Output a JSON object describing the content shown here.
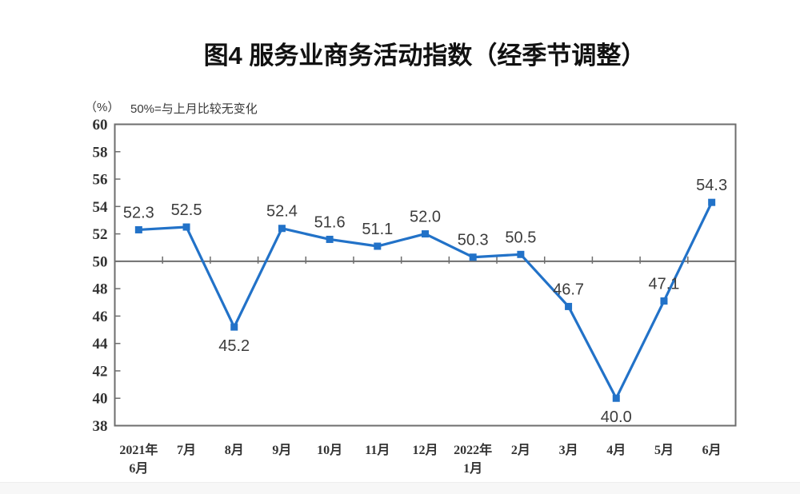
{
  "page": {
    "background": "#ffffff",
    "footer_strip_color": "#f7f7f7"
  },
  "chart_data": {
    "type": "line",
    "title": "图4  服务业商务活动指数（经季节调整）",
    "unit_label": "（%）",
    "reference_note": "50%=与上月比较无变化",
    "categories": [
      "2021年\n6月",
      "7月",
      "8月",
      "9月",
      "10月",
      "11月",
      "12月",
      "2022年\n1月",
      "2月",
      "3月",
      "4月",
      "5月",
      "6月"
    ],
    "series": [
      {
        "name": "服务业商务活动指数",
        "values": [
          52.3,
          52.5,
          45.2,
          52.4,
          51.6,
          51.1,
          52.0,
          50.3,
          50.5,
          46.7,
          40.0,
          47.1,
          54.3
        ],
        "color": "#2272C8",
        "marker": "square"
      }
    ],
    "data_labels": [
      "52.3",
      "52.5",
      "45.2",
      "52.4",
      "51.6",
      "51.1",
      "52.0",
      "50.3",
      "50.5",
      "46.7",
      "40.0",
      "47.1",
      "54.3"
    ],
    "data_label_positions": [
      "above",
      "above",
      "below",
      "above",
      "above",
      "above",
      "above",
      "above",
      "above",
      "above",
      "below",
      "above",
      "above"
    ],
    "ylim": [
      38,
      60
    ],
    "ytick_step": 2,
    "yticks": [
      60,
      58,
      56,
      54,
      52,
      50,
      48,
      46,
      44,
      42,
      40,
      38
    ],
    "reference_line_y": 50,
    "axis_color": "#6e6e6e",
    "tick_label_color": "#333333",
    "data_label_color": "#3c3c3c",
    "grid": false,
    "legend_position": "none"
  }
}
